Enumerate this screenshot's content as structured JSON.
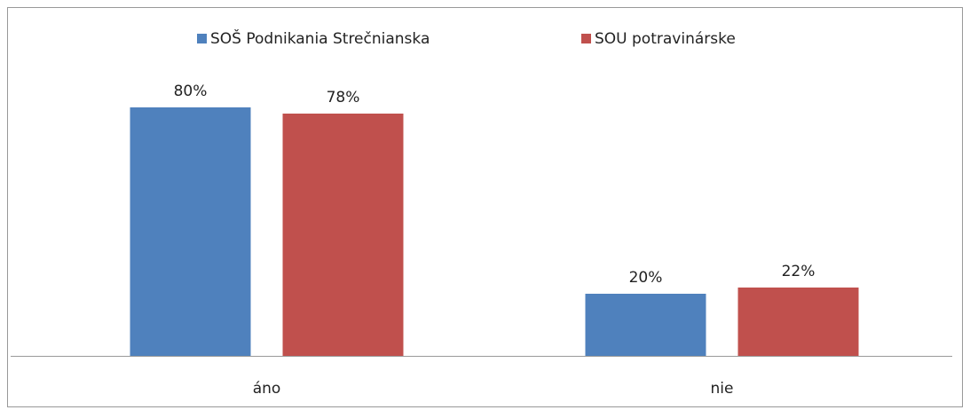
{
  "chart_data": {
    "type": "bar",
    "categories": [
      "áno",
      "nie"
    ],
    "series": [
      {
        "name": "SOŠ Podnikania Strečnianska",
        "color": "#4f81bd",
        "values": [
          80,
          20
        ],
        "value_labels": [
          "80%",
          "20%"
        ]
      },
      {
        "name": "SOU potravinárske",
        "color": "#c0504d",
        "values": [
          78,
          22
        ],
        "value_labels": [
          "78%",
          "22%"
        ]
      }
    ],
    "legend": "top"
  }
}
